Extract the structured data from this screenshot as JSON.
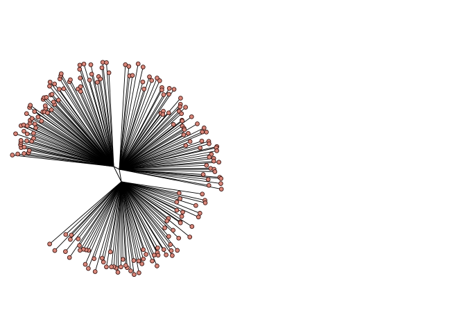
{
  "figure": {
    "type": "unrooted-radial-tree",
    "background": "#ffffff",
    "branch_color": "#000000",
    "tip_fill": "#d9877a",
    "tip_stroke": "#3a1410",
    "tip_count": 210,
    "internal_hubs": 3,
    "labels_shown": false
  }
}
